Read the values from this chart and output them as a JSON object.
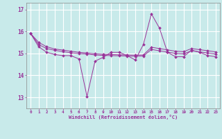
{
  "xlabel": "Windchill (Refroidissement éolien,°C)",
  "x_values": [
    0,
    1,
    2,
    3,
    4,
    5,
    6,
    7,
    8,
    9,
    10,
    11,
    12,
    13,
    14,
    15,
    16,
    17,
    18,
    19,
    20,
    21,
    22,
    23
  ],
  "line1": [
    15.9,
    15.3,
    15.05,
    14.95,
    14.9,
    14.9,
    14.75,
    13.05,
    14.65,
    14.82,
    15.05,
    15.05,
    14.9,
    14.7,
    15.4,
    16.8,
    16.15,
    15.05,
    14.85,
    14.85,
    15.15,
    15.05,
    14.9,
    14.85
  ],
  "line2": [
    15.9,
    15.5,
    15.3,
    15.2,
    15.15,
    15.1,
    15.05,
    15.02,
    14.98,
    14.96,
    14.95,
    14.94,
    14.93,
    14.92,
    14.93,
    15.28,
    15.22,
    15.16,
    15.1,
    15.08,
    15.22,
    15.17,
    15.12,
    15.07
  ],
  "line3": [
    15.9,
    15.4,
    15.22,
    15.14,
    15.08,
    15.03,
    14.99,
    14.97,
    14.93,
    14.91,
    14.9,
    14.89,
    14.88,
    14.87,
    14.88,
    15.18,
    15.12,
    15.06,
    15.0,
    14.98,
    15.12,
    15.07,
    15.02,
    14.97
  ],
  "line_color": "#993399",
  "bg_color": "#c8eaea",
  "grid_color": "#ffffff",
  "ylim": [
    12.5,
    17.3
  ],
  "yticks": [
    13,
    14,
    15,
    16,
    17
  ],
  "marker": "D",
  "markersize": 2.0
}
